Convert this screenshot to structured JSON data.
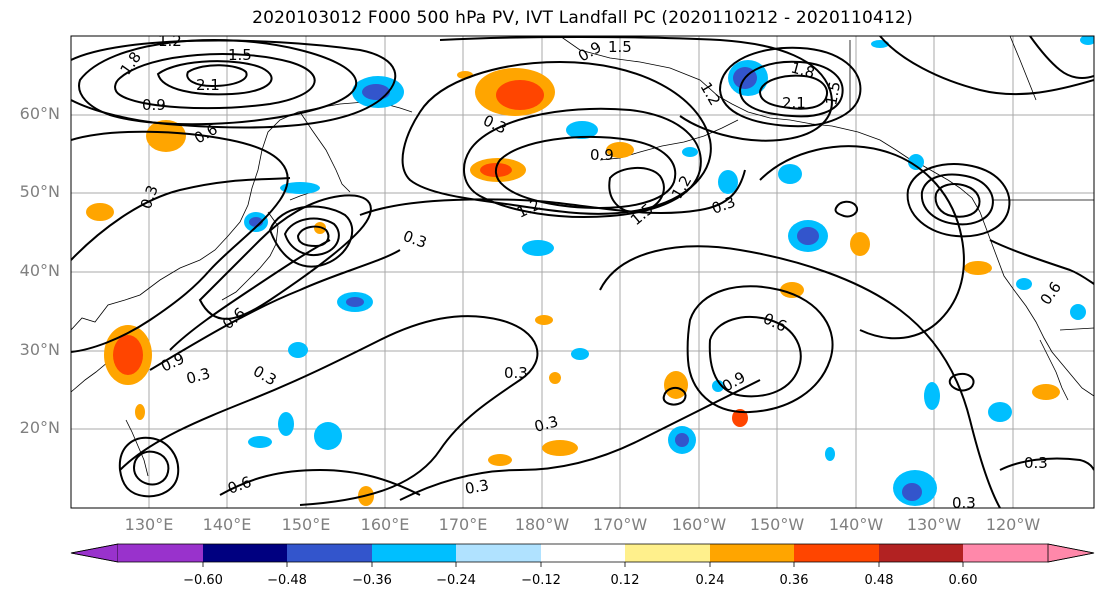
{
  "map": {
    "title": "2020103012 F000 500 hPa PV, IVT Landfall PC (2020110212 - 2020110412)",
    "lat_labels": [
      "60°N",
      "50°N",
      "40°N",
      "30°N",
      "20°N"
    ],
    "lon_labels": [
      "130°E",
      "140°E",
      "150°E",
      "160°E",
      "170°E",
      "180°W",
      "170°W",
      "160°W",
      "150°W",
      "140°W",
      "130°W",
      "120°W"
    ],
    "contour_labels": [
      "1.2",
      "1.5",
      "1.8",
      "2.1",
      "0.9",
      "0.6",
      "0.3",
      "1.5",
      "1.8",
      "2.1",
      "1.5",
      "1.2",
      "0.9",
      "0.3",
      "1.2",
      "1.5",
      "0.9",
      "0.3",
      "1.2",
      "0.6",
      "0.3",
      "0.9",
      "0.3",
      "0.3",
      "0.3",
      "0.6",
      "0.9",
      "0.6",
      "0.3",
      "0.6",
      "0.3",
      "0.3",
      "0.3"
    ],
    "colorbar": {
      "ticks": [
        "−0.60",
        "−0.48",
        "−0.36",
        "−0.24",
        "−0.12",
        "0.12",
        "0.24",
        "0.36",
        "0.48",
        "0.60"
      ],
      "colors": [
        "#9932cc",
        "#000080",
        "#3355cc",
        "#00bfff",
        "#b0e2ff",
        "#ffffff",
        "#fff08c",
        "#ffa500",
        "#ff4500",
        "#b22222",
        "#ff88aa"
      ]
    }
  }
}
